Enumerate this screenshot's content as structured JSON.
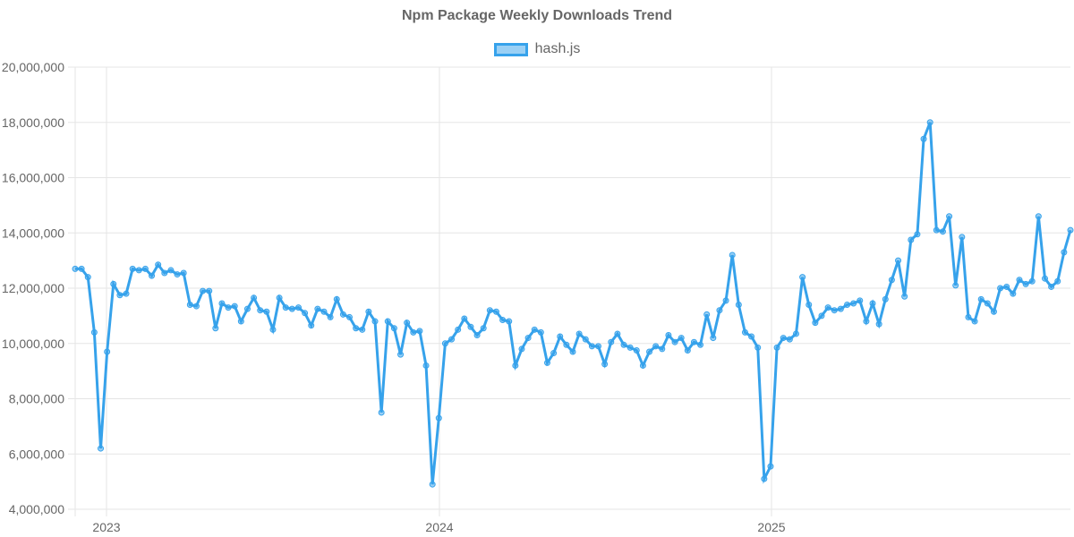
{
  "chart_data": {
    "type": "line",
    "title": "Npm Package Weekly Downloads Trend",
    "xlabel": "",
    "ylabel": "",
    "ylim": [
      4000000,
      20000000
    ],
    "y_ticks": [
      "20,000,000",
      "18,000,000",
      "16,000,000",
      "14,000,000",
      "12,000,000",
      "10,000,000",
      "8,000,000",
      "6,000,000",
      "4,000,000"
    ],
    "x_ticks": [
      "2023",
      "2024",
      "2025"
    ],
    "grid": true,
    "legend_position": "top",
    "series": [
      {
        "name": "hash.js",
        "color": "#36A2EB",
        "values": [
          12700000,
          12700000,
          12400000,
          10400000,
          6200000,
          9700000,
          12150000,
          11750000,
          11800000,
          12700000,
          12650000,
          12700000,
          12450000,
          12850000,
          12550000,
          12650000,
          12500000,
          12550000,
          11400000,
          11350000,
          11900000,
          11900000,
          10550000,
          11450000,
          11300000,
          11350000,
          10800000,
          11250000,
          11650000,
          11200000,
          11150000,
          10500000,
          11650000,
          11300000,
          11250000,
          11300000,
          11100000,
          10650000,
          11250000,
          11150000,
          10950000,
          11600000,
          11050000,
          10950000,
          10550000,
          10500000,
          11150000,
          10800000,
          7500000,
          10800000,
          10550000,
          9600000,
          10750000,
          10400000,
          10450000,
          9200000,
          4900000,
          7300000,
          10000000,
          10150000,
          10500000,
          10900000,
          10600000,
          10300000,
          10550000,
          11200000,
          11150000,
          10850000,
          10800000,
          9200000,
          9800000,
          10200000,
          10500000,
          10400000,
          9300000,
          9650000,
          10250000,
          9950000,
          9700000,
          10350000,
          10150000,
          9900000,
          9900000,
          9250000,
          10050000,
          10350000,
          9950000,
          9850000,
          9750000,
          9200000,
          9700000,
          9900000,
          9800000,
          10300000,
          10050000,
          10200000,
          9750000,
          10050000,
          9950000,
          11050000,
          10200000,
          11200000,
          11550000,
          13200000,
          11400000,
          10400000,
          10250000,
          9850000,
          5100000,
          5550000,
          9850000,
          10200000,
          10150000,
          10350000,
          12400000,
          11400000,
          10750000,
          11000000,
          11300000,
          11200000,
          11250000,
          11400000,
          11450000,
          11550000,
          10800000,
          11450000,
          10700000,
          11600000,
          12300000,
          13000000,
          11700000,
          13750000,
          13950000,
          17400000,
          18000000,
          14100000,
          14050000,
          14600000,
          12100000,
          13850000,
          10950000,
          10800000,
          11600000,
          11450000,
          11150000,
          12000000,
          12050000,
          11800000,
          12300000,
          12150000,
          12250000,
          14600000,
          12350000,
          12050000,
          12250000,
          13300000,
          14100000
        ]
      }
    ]
  },
  "legend": {
    "label": "hash.js"
  }
}
